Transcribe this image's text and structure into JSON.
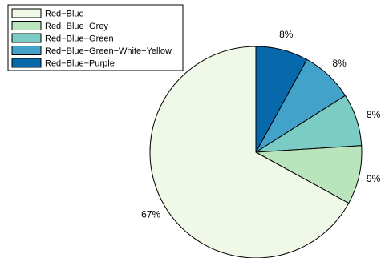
{
  "chart_data": {
    "type": "pie",
    "start": "top",
    "direction": "clockwise",
    "legend_position": "top-left",
    "slices": [
      {
        "name": "Red−Blue−Purple",
        "value": 8,
        "label": "8%",
        "color": "#0868ac"
      },
      {
        "name": "Red−Blue−Green−White−Yellow",
        "value": 8,
        "label": "8%",
        "color": "#43a2ca"
      },
      {
        "name": "Red−Blue−Green",
        "value": 8,
        "label": "8%",
        "color": "#7bccc4"
      },
      {
        "name": "Red−Blue−Grey",
        "value": 9,
        "label": "9%",
        "color": "#bae4bc"
      },
      {
        "name": "Red−Blue",
        "value": 67,
        "label": "67%",
        "color": "#f0f9e8"
      }
    ],
    "legend": [
      {
        "text": "Red−Blue",
        "color": "#f0f9e8"
      },
      {
        "text": "Red−Blue−Grey",
        "color": "#bae4bc"
      },
      {
        "text": "Red−Blue−Green",
        "color": "#7bccc4"
      },
      {
        "text": "Red−Blue−Green−White−Yellow",
        "color": "#43a2ca"
      },
      {
        "text": "Red−Blue−Purple",
        "color": "#0868ac"
      }
    ]
  }
}
